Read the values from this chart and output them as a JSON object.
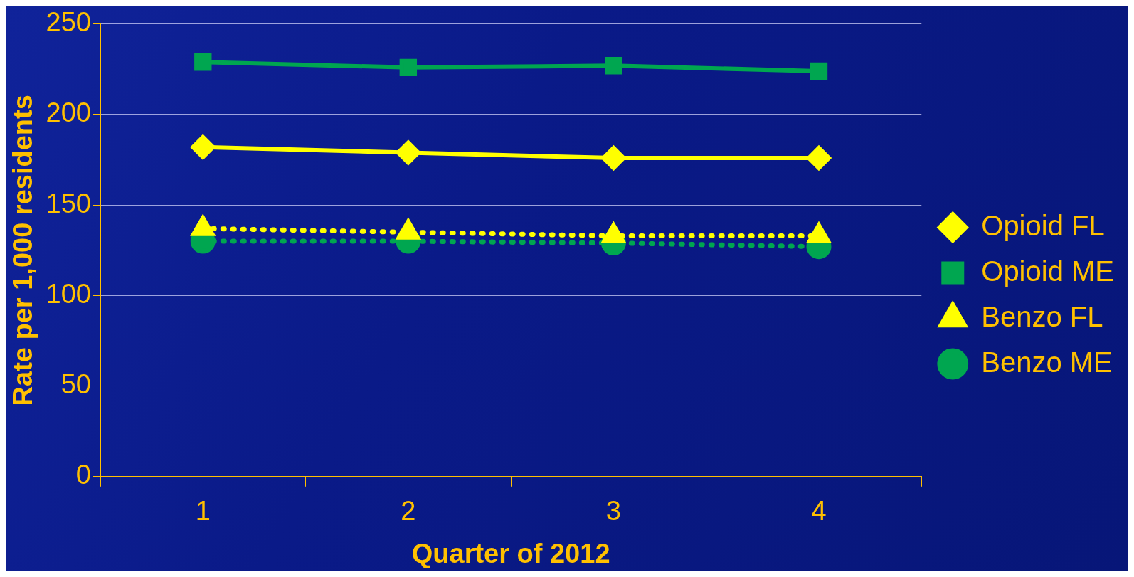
{
  "chart_data": {
    "type": "line",
    "xlabel": "Quarter of 2012",
    "ylabel": "Rate per 1,000 residents",
    "categories": [
      "1",
      "2",
      "3",
      "4"
    ],
    "ylim": [
      0,
      250
    ],
    "yticks": [
      0,
      50,
      100,
      150,
      200,
      250
    ],
    "grid": "y",
    "legend": "right",
    "series": [
      {
        "name": "Opioid FL",
        "color": "#ffff00",
        "values": [
          182,
          179,
          176,
          176
        ],
        "marker": "diamond",
        "line_style": "solid"
      },
      {
        "name": "Opioid ME",
        "color": "#00a650",
        "values": [
          229,
          226,
          227,
          224
        ],
        "marker": "square",
        "line_style": "solid"
      },
      {
        "name": "Benzo FL",
        "color": "#ffff00",
        "values": [
          137,
          135,
          133,
          133
        ],
        "marker": "triangle",
        "line_style": "dotted"
      },
      {
        "name": "Benzo ME",
        "color": "#00a650",
        "values": [
          130,
          130,
          129,
          127
        ],
        "marker": "circle",
        "line_style": "dotted"
      }
    ]
  }
}
